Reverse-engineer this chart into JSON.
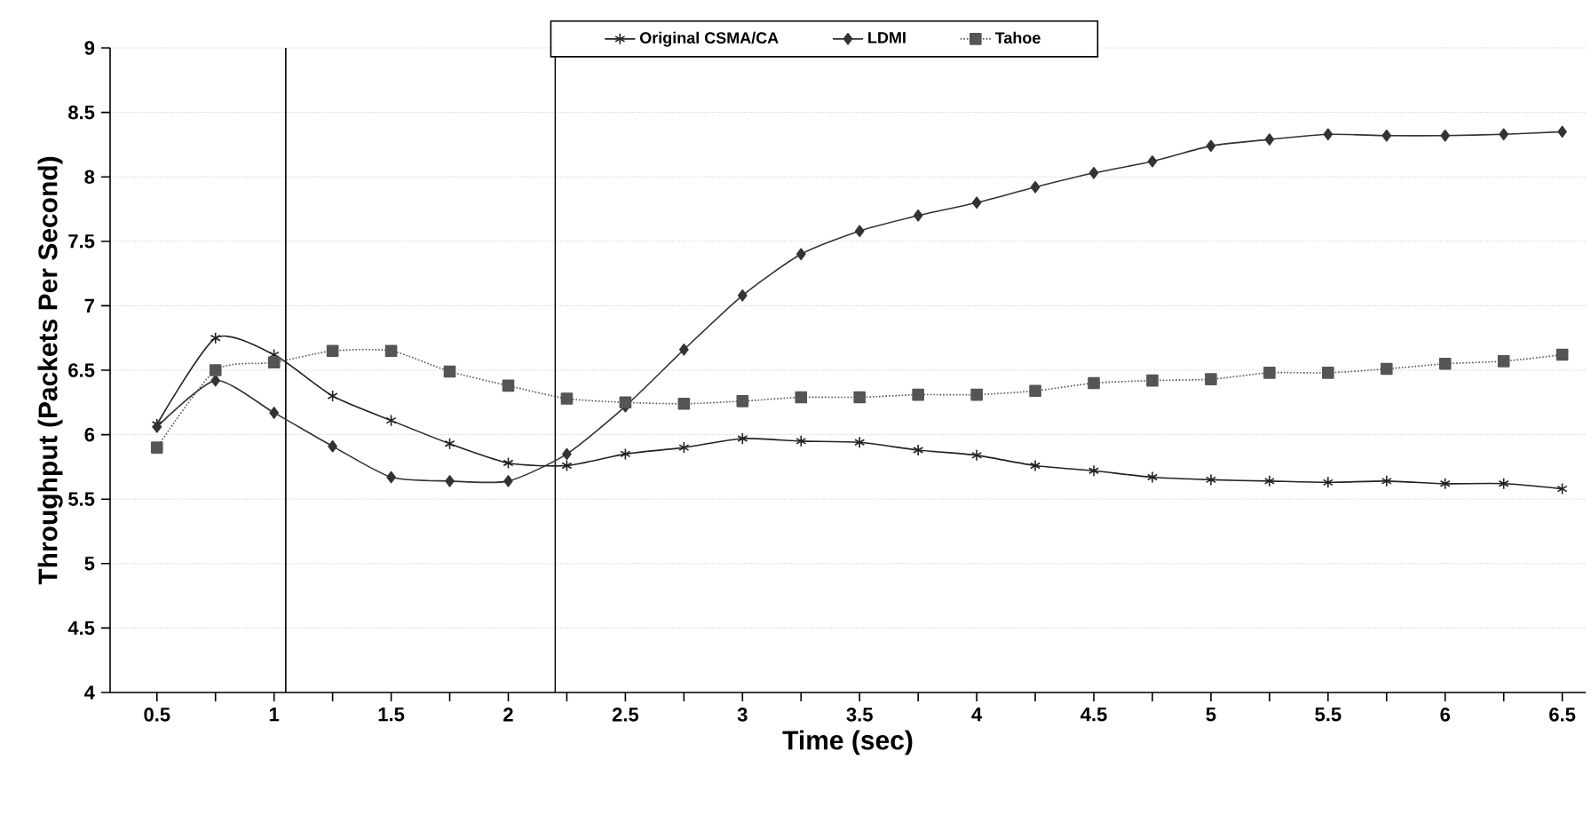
{
  "chart_data": {
    "type": "line",
    "xlabel": "Time (sec)",
    "ylabel": "Throughput (Packets Per Second)",
    "x": [
      0.5,
      0.75,
      1,
      1.25,
      1.5,
      1.75,
      2,
      2.25,
      2.5,
      2.75,
      3,
      3.25,
      3.5,
      3.75,
      4,
      4.25,
      4.5,
      4.75,
      5,
      5.25,
      5.5,
      5.75,
      6,
      6.25,
      6.5
    ],
    "series": [
      {
        "name": "Original CSMA/CA",
        "color": "#222222",
        "marker": "cross",
        "line_style": "solid",
        "values": [
          6.08,
          6.75,
          6.62,
          6.3,
          6.11,
          5.93,
          5.78,
          5.76,
          5.85,
          5.9,
          5.97,
          5.95,
          5.94,
          5.88,
          5.84,
          5.76,
          5.72,
          5.67,
          5.65,
          5.64,
          5.63,
          5.64,
          5.62,
          5.62,
          5.58
        ]
      },
      {
        "name": "LDMI",
        "color": "#333333",
        "marker": "diamond",
        "line_style": "solid",
        "values": [
          6.06,
          6.42,
          6.17,
          5.91,
          5.67,
          5.64,
          5.64,
          5.85,
          6.22,
          6.66,
          7.08,
          7.4,
          7.58,
          7.7,
          7.8,
          7.92,
          8.03,
          8.12,
          8.24,
          8.29,
          8.33,
          8.32,
          8.32,
          8.33,
          8.35
        ]
      },
      {
        "name": "Tahoe",
        "color": "#555555",
        "marker": "square",
        "line_style": "dotted",
        "values": [
          5.9,
          6.5,
          6.56,
          6.65,
          6.65,
          6.49,
          6.38,
          6.28,
          6.25,
          6.24,
          6.26,
          6.29,
          6.29,
          6.31,
          6.31,
          6.34,
          6.4,
          6.42,
          6.43,
          6.48,
          6.48,
          6.51,
          6.55,
          6.57,
          6.62
        ]
      }
    ],
    "xlim": [
      0.3,
      6.6
    ],
    "ylim": [
      4,
      9
    ],
    "xticks": [
      0.5,
      {
        "value": 0.75,
        "label": null
      },
      1,
      {
        "value": 1.25,
        "label": null
      },
      1.5,
      {
        "value": 1.75,
        "label": null
      },
      2,
      {
        "value": 2.25,
        "label": null
      },
      2.5,
      {
        "value": 2.75,
        "label": null
      },
      3,
      {
        "value": 3.25,
        "label": null
      },
      3.5,
      {
        "value": 3.75,
        "label": null
      },
      4,
      {
        "value": 4.25,
        "label": null
      },
      4.5,
      {
        "value": 4.75,
        "label": null
      },
      5,
      {
        "value": 5.25,
        "label": null
      },
      5.5,
      {
        "value": 5.75,
        "label": null
      },
      6,
      {
        "value": 6.25,
        "label": null
      },
      6.5
    ],
    "yticks": [
      4,
      4.5,
      5,
      5.5,
      6,
      6.5,
      7,
      7.5,
      8,
      8.5,
      9
    ],
    "ref_lines": [
      {
        "axis": "x",
        "value": 1.05,
        "color": "#000000"
      },
      {
        "axis": "x",
        "value": 2.2,
        "color": "#000000"
      }
    ],
    "grid": "y",
    "legend": "top"
  }
}
